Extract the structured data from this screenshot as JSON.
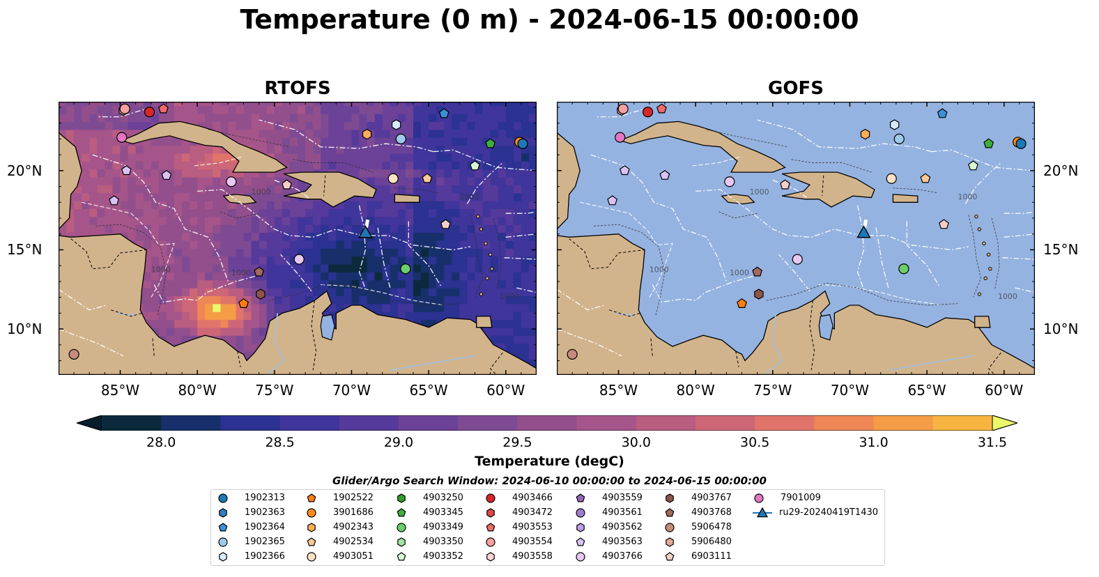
{
  "suptitle": "Temperature (0 m) - 2024-06-15 00:00:00",
  "panels": [
    {
      "title": "RTOFS",
      "model": "rtofs"
    },
    {
      "title": "GOFS",
      "model": "gofs"
    }
  ],
  "x_ticks": [
    "85°W",
    "80°W",
    "75°W",
    "70°W",
    "65°W",
    "60°W"
  ],
  "y_ticks": [
    "20°N",
    "15°N",
    "10°N"
  ],
  "colorbar": {
    "label": "Temperature (degC)",
    "ticks": [
      "28.0",
      "28.5",
      "29.0",
      "29.5",
      "30.0",
      "30.5",
      "31.0",
      "31.5"
    ],
    "min": 28.0,
    "max": 31.5,
    "step": 0.25,
    "colors": [
      "#0b2a3d",
      "#17306b",
      "#2b3291",
      "#40359b",
      "#553a9b",
      "#6b4298",
      "#7e4b93",
      "#924f8c",
      "#a5558a",
      "#b95d81",
      "#cd6778",
      "#e1746a",
      "#ef8656",
      "#f59c47",
      "#f8b441",
      "#f8ce4b",
      "#f1e75d"
    ],
    "under_color": "#071e2c",
    "over_color": "#e9f96a"
  },
  "contour_label": "1000",
  "search_window": "Glider/Argo Search Window: 2024-06-10 00:00:00 to 2024-06-15 00:00:00",
  "colors": {
    "land": "#d2b48c",
    "ocean_nodata": "#95b3e1",
    "river": "#a7bed8",
    "glider": "#1f77b4"
  },
  "legend": [
    {
      "id": "1902313",
      "marker": "circle",
      "color": "#1f77b4"
    },
    {
      "id": "1902363",
      "marker": "hexagon",
      "color": "#2f7ec0"
    },
    {
      "id": "1902364",
      "marker": "pentagon",
      "color": "#3e8fd6"
    },
    {
      "id": "1902365",
      "marker": "circle",
      "color": "#9ecae9"
    },
    {
      "id": "1902366",
      "marker": "hexagon",
      "color": "#d6eaf8"
    },
    {
      "id": "1902522",
      "marker": "pentagon",
      "color": "#ff7f0e"
    },
    {
      "id": "3901686",
      "marker": "circle",
      "color": "#ff8a1a"
    },
    {
      "id": "4902343",
      "marker": "hexagon",
      "color": "#ffad5a"
    },
    {
      "id": "4902534",
      "marker": "pentagon",
      "color": "#ffc796"
    },
    {
      "id": "4903051",
      "marker": "circle",
      "color": "#ffe2c5"
    },
    {
      "id": "4903250",
      "marker": "hexagon",
      "color": "#2ca02c"
    },
    {
      "id": "4903345",
      "marker": "pentagon",
      "color": "#3daf3d"
    },
    {
      "id": "4903349",
      "marker": "circle",
      "color": "#6bcf6b"
    },
    {
      "id": "4903350",
      "marker": "hexagon",
      "color": "#a0e3a0"
    },
    {
      "id": "4903352",
      "marker": "pentagon",
      "color": "#d9f7d2"
    },
    {
      "id": "4903466",
      "marker": "circle",
      "color": "#d62728"
    },
    {
      "id": "4903472",
      "marker": "hexagon",
      "color": "#e04747"
    },
    {
      "id": "4903553",
      "marker": "pentagon",
      "color": "#ee6b6b"
    },
    {
      "id": "4903554",
      "marker": "circle",
      "color": "#f7a0a0"
    },
    {
      "id": "4903558",
      "marker": "hexagon",
      "color": "#fdd3d3"
    },
    {
      "id": "4903559",
      "marker": "pentagon",
      "color": "#9467bd"
    },
    {
      "id": "4903561",
      "marker": "circle",
      "color": "#a07cd0"
    },
    {
      "id": "4903562",
      "marker": "hexagon",
      "color": "#bf9ce6"
    },
    {
      "id": "4903563",
      "marker": "pentagon",
      "color": "#d9c3f5"
    },
    {
      "id": "4903766",
      "marker": "circle",
      "color": "#e6c8f2"
    },
    {
      "id": "4903767",
      "marker": "hexagon",
      "color": "#8c564b"
    },
    {
      "id": "4903768",
      "marker": "pentagon",
      "color": "#a06a5d"
    },
    {
      "id": "5906478",
      "marker": "circle",
      "color": "#c58b7c"
    },
    {
      "id": "5906480",
      "marker": "hexagon",
      "color": "#e3a89a"
    },
    {
      "id": "6903111",
      "marker": "pentagon",
      "color": "#f6cfc4"
    },
    {
      "id": "7901009",
      "marker": "circle",
      "color": "#e377c2"
    },
    {
      "id": "ru29-20240419T1430",
      "marker": "triangle-line",
      "color": "#1f77b4"
    }
  ],
  "floats": [
    {
      "id": "5906480",
      "lon": -84.8,
      "lat": 23.8
    },
    {
      "id": "4903554",
      "lon": -84.7,
      "lat": 23.9
    },
    {
      "id": "4903466",
      "lon": -83.1,
      "lat": 23.7
    },
    {
      "id": "4903553",
      "lon": -82.2,
      "lat": 23.9
    },
    {
      "id": "1902364",
      "lon": -64.0,
      "lat": 23.6
    },
    {
      "id": "1902366",
      "lon": -67.1,
      "lat": 22.9
    },
    {
      "id": "4902343",
      "lon": -69.0,
      "lat": 22.3
    },
    {
      "id": "1902365",
      "lon": -66.8,
      "lat": 22.0
    },
    {
      "id": "4903345",
      "lon": -61.0,
      "lat": 21.7
    },
    {
      "id": "3901686",
      "lon": -59.1,
      "lat": 21.8
    },
    {
      "id": "1902313",
      "lon": -58.9,
      "lat": 21.7
    },
    {
      "id": "7901009",
      "lon": -84.9,
      "lat": 22.1
    },
    {
      "id": "4903563",
      "lon": -84.6,
      "lat": 20.0
    },
    {
      "id": "4903563",
      "lon": -82.0,
      "lat": 19.7
    },
    {
      "id": "4903766",
      "lon": -77.8,
      "lat": 19.3
    },
    {
      "id": "4903352",
      "lon": -62.0,
      "lat": 20.3
    },
    {
      "id": "4903051",
      "lon": -67.3,
      "lat": 19.5
    },
    {
      "id": "4902534",
      "lon": -65.1,
      "lat": 19.5
    },
    {
      "id": "6903111",
      "lon": -74.2,
      "lat": 19.1
    },
    {
      "id": "4903563",
      "lon": -85.4,
      "lat": 18.1
    },
    {
      "id": "6903111",
      "lon": -63.9,
      "lat": 16.6
    },
    {
      "id": "4903766",
      "lon": -73.4,
      "lat": 14.4
    },
    {
      "id": "4903349",
      "lon": -66.5,
      "lat": 13.8
    },
    {
      "id": "4903768",
      "lon": -76.0,
      "lat": 13.6
    },
    {
      "id": "4903767",
      "lon": -75.9,
      "lat": 12.2
    },
    {
      "id": "1902522",
      "lon": -77.0,
      "lat": 11.6
    },
    {
      "id": "5906478",
      "lon": -88.0,
      "lat": 8.4
    }
  ],
  "glider": {
    "id": "ru29-20240419T1430",
    "lon": -69.1,
    "lat": 16.1
  }
}
